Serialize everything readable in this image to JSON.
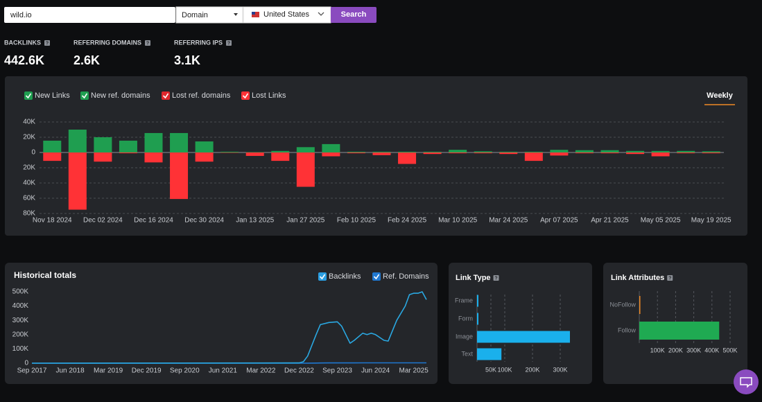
{
  "search": {
    "query": "wild.io",
    "mode": "Domain",
    "country": "United States",
    "button": "Search"
  },
  "stats": [
    {
      "label": "BACKLINKS",
      "value": "442.6K"
    },
    {
      "label": "REFERRING DOMAINS",
      "value": "2.6K"
    },
    {
      "label": "REFERRING IPS",
      "value": "3.1K"
    }
  ],
  "chart_data": [
    {
      "type": "bar",
      "tab": "Weekly",
      "categories": [
        "Nov 18 2024",
        null,
        "Dec 02 2024",
        null,
        "Dec 16 2024",
        null,
        "Dec 30 2024",
        null,
        "Jan 13 2025",
        null,
        "Jan 27 2025",
        null,
        "Feb 10 2025",
        null,
        "Feb 24 2025",
        null,
        "Mar 10 2025",
        null,
        "Mar 24 2025",
        null,
        "Apr 07 2025",
        null,
        "Apr 21 2025",
        null,
        "May 05 2025",
        null,
        "May 19 2025"
      ],
      "series": [
        {
          "name": "New Links",
          "color": "#1f9e50",
          "values": [
            15500,
            30000,
            20000,
            15500,
            25500,
            25500,
            14500,
            1000,
            500,
            2000,
            7000,
            11000,
            1000,
            1000,
            1000,
            1000,
            3500,
            1500,
            1000,
            1000,
            3500,
            3000,
            3000,
            2000,
            2000,
            2000,
            1500
          ]
        },
        {
          "name": "New ref. domains",
          "color": "#1f9e50",
          "values": [
            0,
            0,
            0,
            0,
            0,
            0,
            0,
            0,
            0,
            0,
            0,
            0,
            0,
            0,
            0,
            0,
            0,
            0,
            0,
            0,
            0,
            0,
            0,
            0,
            0,
            0,
            0
          ]
        },
        {
          "name": "Lost ref. domains",
          "color": "#e0262c",
          "values": [
            0,
            0,
            0,
            0,
            0,
            0,
            0,
            0,
            0,
            0,
            0,
            0,
            0,
            0,
            0,
            0,
            0,
            0,
            0,
            0,
            0,
            0,
            0,
            0,
            0,
            0,
            0
          ]
        },
        {
          "name": "Lost Links",
          "color": "#ff3236",
          "values": [
            -11000,
            -75000,
            -12000,
            -1000,
            -13000,
            -61000,
            -12000,
            -500,
            -4500,
            -11000,
            -45000,
            -5000,
            -1000,
            -3500,
            -15000,
            -2000,
            -1000,
            -1000,
            -2000,
            -11000,
            -4000,
            -1000,
            -1000,
            -2000,
            -5000,
            -1000,
            -1000
          ]
        }
      ],
      "ylim": [
        -80000,
        40000
      ],
      "yticks": [
        {
          "value": 40000,
          "label": "40K"
        },
        {
          "value": 20000,
          "label": "20K"
        },
        0,
        {
          "value": -20000,
          "label": "20K"
        },
        {
          "value": -40000,
          "label": "40K"
        },
        {
          "value": -60000,
          "label": "60K"
        },
        {
          "value": -80000,
          "label": "80K"
        }
      ],
      "grid": true
    },
    {
      "type": "line",
      "title": "Historical totals",
      "x": [
        "2017-09",
        "2022-12",
        "2023-01",
        "2023-02",
        "2023-04",
        "2023-05",
        "2023-07",
        "2023-09",
        "2023-10",
        "2023-12",
        "2024-01",
        "2024-03",
        "2024-04",
        "2024-05",
        "2024-06",
        "2024-08",
        "2024-09",
        "2024-11",
        "2025-01",
        "2025-02",
        "2025-03",
        "2025-04",
        "2025-05",
        "2025-06"
      ],
      "series": [
        {
          "name": "Backlinks",
          "color": "#2aa8e2",
          "values": [
            0,
            2000,
            10000,
            50000,
            200000,
            270000,
            285000,
            290000,
            260000,
            140000,
            160000,
            210000,
            200000,
            210000,
            200000,
            160000,
            155000,
            300000,
            400000,
            480000,
            490000,
            490000,
            500000,
            445000
          ]
        },
        {
          "name": "Ref. Domains",
          "color": "#1f78d1",
          "values": [
            0,
            0,
            0,
            500,
            1000,
            1500,
            1800,
            2000,
            2000,
            2100,
            2100,
            2200,
            2200,
            2300,
            2300,
            2300,
            2300,
            2400,
            2500,
            2500,
            2600,
            2600,
            2600,
            2600
          ]
        }
      ],
      "xlim": [
        "2017-09",
        "2025-06"
      ],
      "xticks": [
        {
          "value": "2017-09",
          "label": "Sep 2017"
        },
        {
          "value": "2018-06",
          "label": "Jun 2018"
        },
        {
          "value": "2019-03",
          "label": "Mar 2019"
        },
        {
          "value": "2019-12",
          "label": "Dec 2019"
        },
        {
          "value": "2020-09",
          "label": "Sep 2020"
        },
        {
          "value": "2021-06",
          "label": "Jun 2021"
        },
        {
          "value": "2022-03",
          "label": "Mar 2022"
        },
        {
          "value": "2022-12",
          "label": "Dec 2022"
        },
        {
          "value": "2023-09",
          "label": "Sep 2023"
        },
        {
          "value": "2024-06",
          "label": "Jun 2024"
        },
        {
          "value": "2025-03",
          "label": "Mar 2025"
        }
      ],
      "ylim": [
        0,
        500000
      ],
      "yticks": [
        0,
        {
          "value": 100000,
          "label": "100K"
        },
        {
          "value": 200000,
          "label": "200K"
        },
        {
          "value": 300000,
          "label": "300K"
        },
        {
          "value": 400000,
          "label": "400K"
        },
        {
          "value": 500000,
          "label": "500K"
        }
      ],
      "grid": false
    },
    {
      "type": "hbar",
      "title": "Link Type",
      "categories": [
        "Frame",
        "Form",
        "Image",
        "Text"
      ],
      "values": [
        5000,
        5000,
        335000,
        88000
      ],
      "color": "#1ab0ec",
      "xlim": [
        0,
        350000
      ],
      "xticks": [
        {
          "value": 50000,
          "label": "50K"
        },
        {
          "value": 100000,
          "label": "100K"
        },
        {
          "value": 200000,
          "label": "200K"
        },
        {
          "value": 300000,
          "label": "300K"
        }
      ],
      "grid": true
    },
    {
      "type": "hbar",
      "title": "Link Attributes",
      "categories": [
        "NoFollow",
        "Follow"
      ],
      "values": [
        5000,
        440000
      ],
      "colors": [
        "#f08a24",
        "#1faa52"
      ],
      "xlim": [
        0,
        500000
      ],
      "xticks": [
        {
          "value": 100000,
          "label": "100K"
        },
        {
          "value": 200000,
          "label": "200K"
        },
        {
          "value": 300000,
          "label": "300K"
        },
        {
          "value": 400000,
          "label": "400K"
        },
        {
          "value": 500000,
          "label": "500K"
        }
      ],
      "grid": true
    }
  ]
}
